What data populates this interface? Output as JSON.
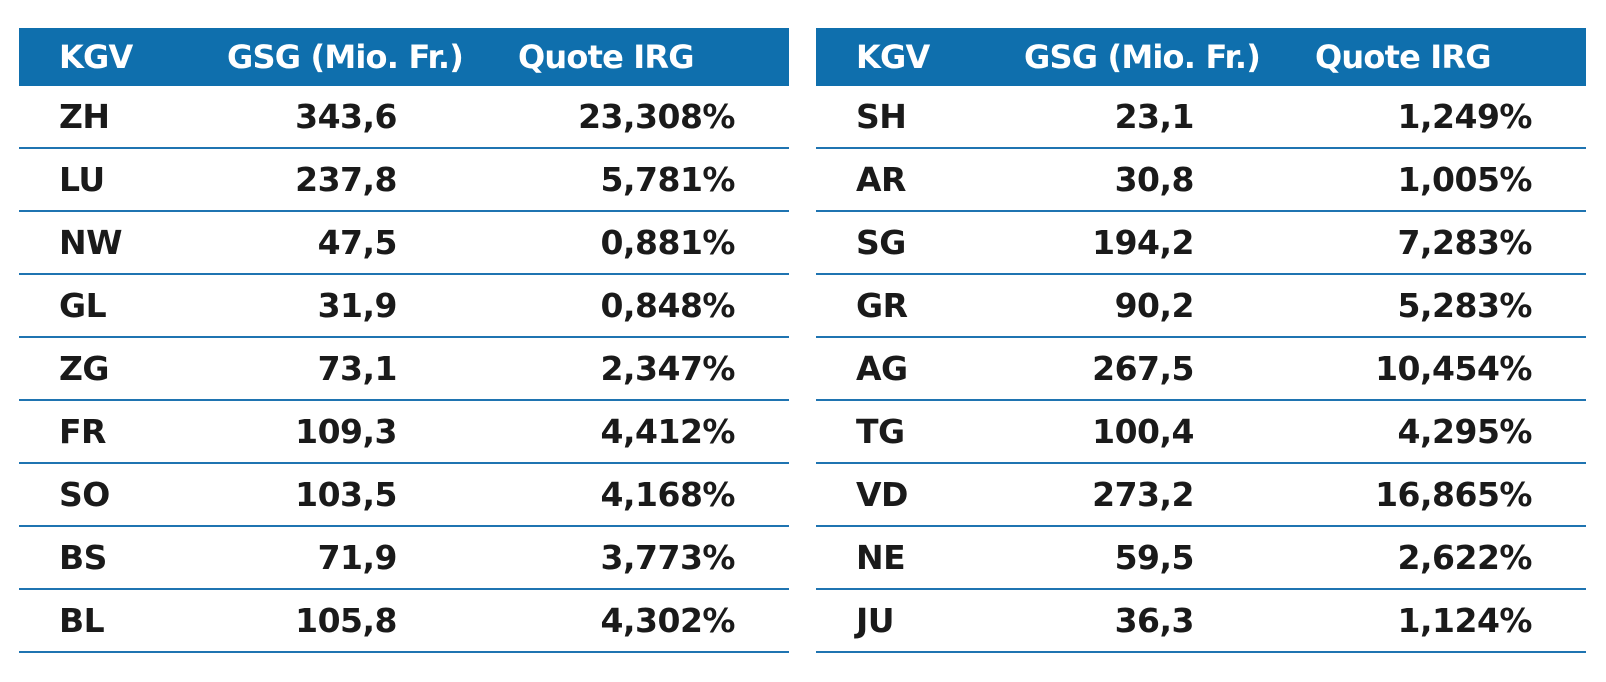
{
  "chart_data": {
    "type": "table",
    "tables": [
      {
        "columns": [
          "KGV",
          "GSG (Mio. Fr.)",
          "Quote IRG"
        ],
        "rows": [
          [
            "ZH",
            "343,6",
            "23,308%"
          ],
          [
            "LU",
            "237,8",
            "5,781%"
          ],
          [
            "NW",
            "47,5",
            "0,881%"
          ],
          [
            "GL",
            "31,9",
            "0,848%"
          ],
          [
            "ZG",
            "73,1",
            "2,347%"
          ],
          [
            "FR",
            "109,3",
            "4,412%"
          ],
          [
            "SO",
            "103,5",
            "4,168%"
          ],
          [
            "BS",
            "71,9",
            "3,773%"
          ],
          [
            "BL",
            "105,8",
            "4,302%"
          ]
        ]
      },
      {
        "columns": [
          "KGV",
          "GSG (Mio. Fr.)",
          "Quote IRG"
        ],
        "rows": [
          [
            "SH",
            "23,1",
            "1,249%"
          ],
          [
            "AR",
            "30,8",
            "1,005%"
          ],
          [
            "SG",
            "194,2",
            "7,283%"
          ],
          [
            "GR",
            "90,2",
            "5,283%"
          ],
          [
            "AG",
            "267,5",
            "10,454%"
          ],
          [
            "TG",
            "100,4",
            "4,295%"
          ],
          [
            "VD",
            "273,2",
            "16,865%"
          ],
          [
            "NE",
            "59,5",
            "2,622%"
          ],
          [
            "JU",
            "36,3",
            "1,124%"
          ]
        ]
      }
    ]
  },
  "colors": {
    "header_background": "#0f6fad",
    "header_text": "#ffffff",
    "row_divider": "#1f74b1",
    "body_text": "#1a1a1a"
  }
}
